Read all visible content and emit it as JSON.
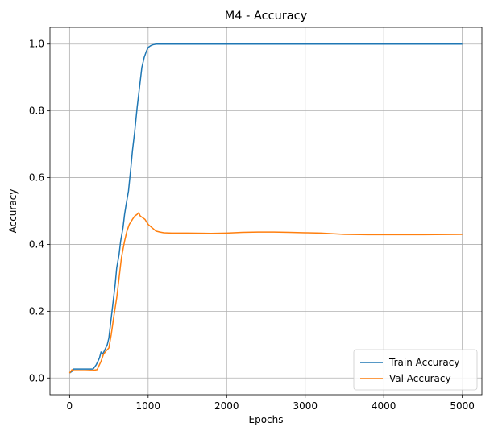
{
  "chart_data": {
    "type": "line",
    "title": "M4 - Accuracy",
    "xlabel": "Epochs",
    "ylabel": "Accuracy",
    "xlim": [
      -250,
      5250
    ],
    "ylim": [
      -0.05,
      1.05
    ],
    "xticks": [
      0,
      1000,
      2000,
      3000,
      4000,
      5000
    ],
    "yticks": [
      0.0,
      0.2,
      0.4,
      0.6,
      0.8,
      1.0
    ],
    "grid": true,
    "legend_position": "bottom-right",
    "series": [
      {
        "name": "Train Accuracy",
        "color": "#1f77b4",
        "x": [
          0,
          30,
          50,
          100,
          200,
          300,
          340,
          380,
          400,
          420,
          440,
          460,
          480,
          500,
          520,
          550,
          580,
          600,
          630,
          650,
          680,
          700,
          720,
          750,
          780,
          800,
          830,
          860,
          880,
          900,
          920,
          950,
          980,
          1000,
          1030,
          1060,
          1100,
          1150,
          1200,
          1300,
          1500,
          2000,
          3000,
          4000,
          5000
        ],
        "y": [
          0.015,
          0.02,
          0.027,
          0.027,
          0.027,
          0.027,
          0.04,
          0.06,
          0.078,
          0.072,
          0.08,
          0.09,
          0.1,
          0.12,
          0.16,
          0.22,
          0.28,
          0.33,
          0.37,
          0.41,
          0.45,
          0.49,
          0.52,
          0.56,
          0.63,
          0.68,
          0.74,
          0.81,
          0.85,
          0.89,
          0.93,
          0.96,
          0.98,
          0.99,
          0.995,
          0.998,
          1.0,
          1.0,
          1.0,
          1.0,
          1.0,
          1.0,
          1.0,
          1.0,
          1.0
        ]
      },
      {
        "name": "Val Accuracy",
        "color": "#ff7f0e",
        "x": [
          0,
          30,
          50,
          100,
          200,
          300,
          350,
          400,
          430,
          460,
          500,
          530,
          560,
          600,
          630,
          660,
          700,
          730,
          760,
          800,
          830,
          860,
          880,
          900,
          930,
          960,
          1000,
          1050,
          1100,
          1150,
          1200,
          1300,
          1500,
          1800,
          2000,
          2200,
          2400,
          2600,
          2800,
          3000,
          3200,
          3500,
          3800,
          4000,
          4500,
          5000
        ],
        "y": [
          0.015,
          0.025,
          0.022,
          0.022,
          0.022,
          0.023,
          0.025,
          0.05,
          0.07,
          0.08,
          0.09,
          0.13,
          0.18,
          0.24,
          0.3,
          0.36,
          0.41,
          0.44,
          0.46,
          0.475,
          0.485,
          0.49,
          0.495,
          0.485,
          0.48,
          0.475,
          0.46,
          0.45,
          0.44,
          0.437,
          0.435,
          0.434,
          0.434,
          0.433,
          0.434,
          0.436,
          0.437,
          0.437,
          0.436,
          0.435,
          0.434,
          0.43,
          0.429,
          0.429,
          0.429,
          0.43
        ]
      }
    ]
  }
}
